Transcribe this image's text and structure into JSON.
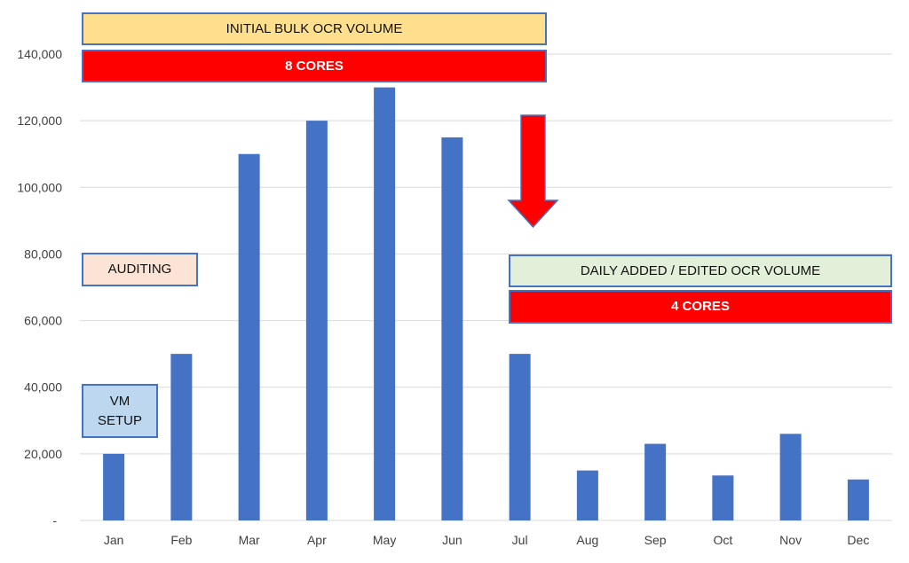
{
  "chart_data": {
    "type": "bar",
    "categories": [
      "Jan",
      "Feb",
      "Mar",
      "Apr",
      "May",
      "Jun",
      "Jul",
      "Aug",
      "Sep",
      "Oct",
      "Nov",
      "Dec"
    ],
    "values": [
      20000,
      50000,
      110000,
      120000,
      130000,
      115000,
      50000,
      15000,
      23000,
      13500,
      26000,
      12300
    ],
    "ylim": [
      0,
      140000
    ],
    "yticks": [
      0,
      20000,
      40000,
      60000,
      80000,
      100000,
      120000,
      140000
    ],
    "ytick_labels": [
      "-",
      "20,000",
      "40,000",
      "60,000",
      "80,000",
      "100,000",
      "120,000",
      "140,000"
    ],
    "grid": true,
    "bar_color": "#4472c4",
    "annotations": {
      "initial_bulk": "INITIAL BULK OCR VOLUME",
      "cores_8": "8 CORES",
      "auditing": "AUDITING",
      "vm_setup": "VM\nSETUP",
      "daily_added": "DAILY ADDED / EDITED OCR VOLUME",
      "cores_4": "4 CORES"
    },
    "arrow": {
      "direction": "down",
      "color": "#ff0000"
    }
  }
}
